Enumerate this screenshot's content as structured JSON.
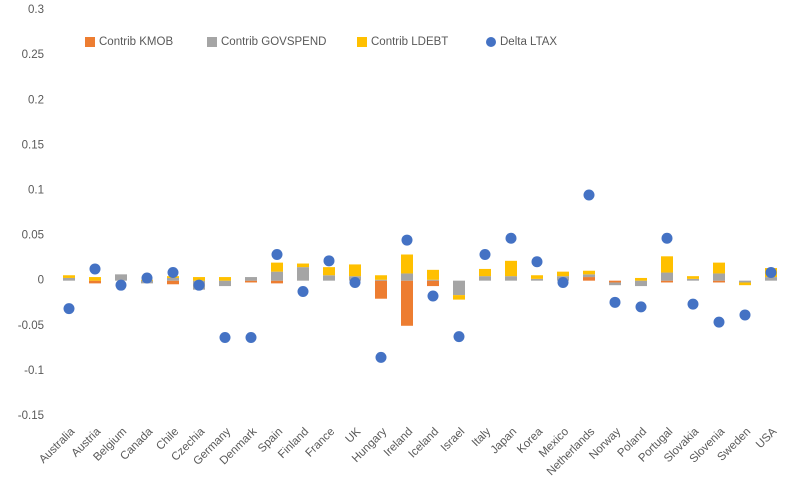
{
  "chart_data": {
    "type": "bar",
    "stacked": true,
    "categories": [
      "Australia",
      "Austria",
      "Belgium",
      "Canada",
      "Chile",
      "Czechia",
      "Germany",
      "Denmark",
      "Spain",
      "Finland",
      "France",
      "UK",
      "Hungary",
      "Ireland",
      "Iceland",
      "Israel",
      "Italy",
      "Japan",
      "Korea",
      "Mexico",
      "Netherlands",
      "Norway",
      "Poland",
      "Portugal",
      "Slovakia",
      "Slovenia",
      "Sweden",
      "USA"
    ],
    "series": [
      {
        "name": "Contrib KMOB",
        "color": "#ed7d31",
        "values": [
          0,
          -0.003,
          0,
          0,
          -0.004,
          0,
          0,
          -0.002,
          -0.003,
          0,
          0,
          0,
          -0.02,
          -0.05,
          -0.006,
          0,
          0,
          0,
          0,
          0,
          0.004,
          -0.002,
          0,
          -0.002,
          0,
          -0.002,
          0,
          0
        ]
      },
      {
        "name": "Contrib GOVSPEND",
        "color": "#a5a5a5",
        "values": [
          0.003,
          0,
          0.007,
          -0.003,
          0.003,
          -0.01,
          -0.006,
          0.004,
          0.01,
          0.015,
          0.006,
          0.005,
          0.001,
          0.008,
          0.001,
          -0.016,
          0.005,
          0.005,
          0.002,
          0.005,
          0.003,
          -0.003,
          -0.006,
          0.009,
          0.002,
          0.008,
          -0.002,
          0.004
        ]
      },
      {
        "name": "Contrib LDEBT",
        "color": "#ffc000",
        "values": [
          0.003,
          0.004,
          0,
          0.001,
          0.002,
          0.004,
          0.004,
          0,
          0.01,
          0.004,
          0.009,
          0.013,
          0.005,
          0.021,
          0.011,
          -0.005,
          0.008,
          0.017,
          0.004,
          0.005,
          0.004,
          0,
          0.003,
          0.018,
          0.003,
          0.012,
          -0.003,
          0.01
        ]
      },
      {
        "name": "Delta LTAX",
        "color": "#4472c4",
        "type": "scatter",
        "values": [
          -0.031,
          0.013,
          -0.005,
          0.003,
          0.009,
          -0.005,
          -0.063,
          -0.063,
          0.029,
          -0.012,
          0.022,
          -0.002,
          -0.085,
          0.045,
          -0.017,
          -0.062,
          0.029,
          0.047,
          0.021,
          -0.002,
          0.095,
          -0.024,
          -0.029,
          0.047,
          -0.026,
          -0.046,
          -0.038,
          0.009
        ]
      }
    ],
    "ylim": [
      -0.15,
      0.3
    ],
    "yticks": [
      -0.15,
      -0.1,
      -0.05,
      0,
      0.05,
      0.1,
      0.15,
      0.2,
      0.25,
      0.3
    ],
    "grid": false
  }
}
